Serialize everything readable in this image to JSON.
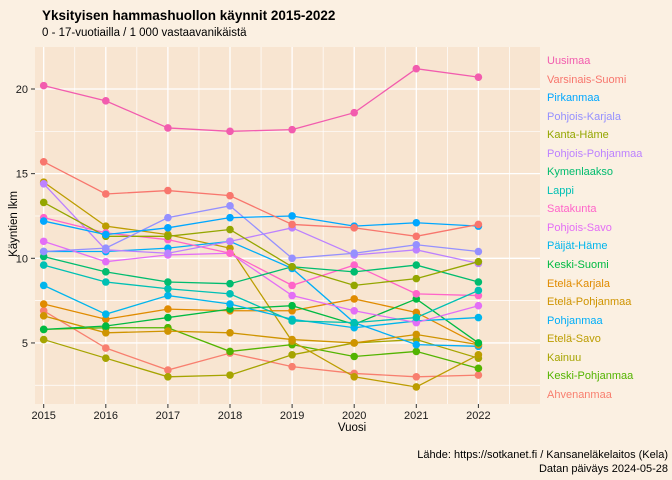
{
  "title": "Yksityisen hammashuollon käynnit 2015-2022",
  "subtitle": "0 - 17-vuotiailla / 1 000 vastaavanikäistä",
  "footer": {
    "source": "Lähde: https://sotkanet.fi / Kansaneläkelaitos (Kela)",
    "date_note": "Datan päiväys 2024-05-28"
  },
  "chart_data": {
    "type": "line",
    "x": [
      2015,
      2016,
      2017,
      2018,
      2019,
      2020,
      2021,
      2022
    ],
    "xlabel": "Vuosi",
    "ylabel": "Käyntien lkm",
    "y_ticks": [
      5,
      10,
      15,
      20
    ],
    "y_minor_ticks": [
      2.5,
      7.5,
      12.5,
      17.5
    ],
    "ylim": [
      1.4,
      22.5
    ],
    "grid": "on",
    "legend_position": "right",
    "page_bg": "#FBF0E2",
    "panel_bg": "#F8E5D1",
    "grid_color": "#FFFFFF",
    "series": [
      {
        "name": "Uusimaa",
        "color": "#F25CAE",
        "values": [
          20.2,
          19.3,
          17.7,
          17.5,
          17.6,
          18.6,
          21.2,
          20.7
        ]
      },
      {
        "name": "Varsinais-Suomi",
        "color": "#F8766D",
        "values": [
          15.7,
          13.8,
          14.0,
          13.7,
          12.0,
          11.8,
          11.3,
          12.0
        ]
      },
      {
        "name": "Pirkanmaa",
        "color": "#00A7FF",
        "values": [
          12.2,
          11.4,
          11.8,
          12.4,
          12.5,
          11.9,
          12.1,
          11.9
        ]
      },
      {
        "name": "Pohjois-Karjala",
        "color": "#9590FF",
        "values": [
          10.4,
          10.6,
          12.4,
          13.1,
          10.0,
          10.3,
          10.8,
          10.4
        ]
      },
      {
        "name": "Kanta-Häme",
        "color": "#94A600",
        "values": [
          13.3,
          11.3,
          11.3,
          11.7,
          9.5,
          8.4,
          8.8,
          9.8
        ]
      },
      {
        "name": "Pohjois-Pohjanmaa",
        "color": "#BC81FF",
        "values": [
          14.4,
          10.5,
          10.3,
          11.0,
          11.8,
          10.2,
          10.5,
          9.7
        ]
      },
      {
        "name": "Kymenlaakso",
        "color": "#00BC6F",
        "values": [
          10.1,
          9.2,
          8.6,
          8.5,
          9.5,
          9.2,
          9.6,
          8.6
        ]
      },
      {
        "name": "Lappi",
        "color": "#00C0B4",
        "values": [
          9.6,
          8.6,
          8.2,
          7.9,
          6.3,
          6.2,
          6.5,
          8.1
        ]
      },
      {
        "name": "Satakunta",
        "color": "#FF64C9",
        "values": [
          12.4,
          11.5,
          11.1,
          10.3,
          8.4,
          9.6,
          7.9,
          7.8
        ]
      },
      {
        "name": "Pohjois-Savo",
        "color": "#E36EF6",
        "values": [
          11.0,
          9.8,
          10.2,
          10.3,
          7.8,
          6.9,
          6.2,
          7.2
        ]
      },
      {
        "name": "Päijät-Häme",
        "color": "#00B5EC",
        "values": [
          8.4,
          6.7,
          7.8,
          7.3,
          6.4,
          5.9,
          6.3,
          6.5
        ]
      },
      {
        "name": "Keski-Suomi",
        "color": "#00BA42",
        "values": [
          5.8,
          6.0,
          6.5,
          7.0,
          7.2,
          6.1,
          7.6,
          5.0
        ]
      },
      {
        "name": "Etelä-Karjala",
        "color": "#E08B00",
        "values": [
          7.3,
          6.4,
          7.0,
          6.9,
          6.9,
          7.6,
          6.8,
          4.9
        ]
      },
      {
        "name": "Etelä-Pohjanmaa",
        "color": "#CF9400",
        "values": [
          6.6,
          5.6,
          5.7,
          5.6,
          5.2,
          5.0,
          5.5,
          4.9
        ]
      },
      {
        "name": "Pohjanmaa",
        "color": "#00AEF8",
        "values": [
          10.4,
          10.4,
          10.6,
          11.0,
          9.4,
          6.2,
          4.9,
          4.8
        ]
      },
      {
        "name": "Etelä-Savo",
        "color": "#BC9D00",
        "values": [
          14.5,
          11.9,
          11.4,
          10.6,
          5.1,
          3.0,
          2.4,
          4.3
        ]
      },
      {
        "name": "Kainuu",
        "color": "#A6A400",
        "values": [
          5.2,
          4.1,
          3.0,
          3.1,
          4.3,
          5.0,
          5.2,
          4.1
        ]
      },
      {
        "name": "Keski-Pohjanmaa",
        "color": "#53B400",
        "values": [
          5.8,
          5.9,
          5.9,
          4.5,
          4.9,
          4.2,
          4.5,
          3.5
        ]
      },
      {
        "name": "Ahvenanmaa",
        "color": "#F87F6F",
        "values": [
          6.9,
          4.7,
          3.4,
          4.4,
          3.6,
          3.2,
          3.0,
          3.1
        ]
      }
    ]
  }
}
